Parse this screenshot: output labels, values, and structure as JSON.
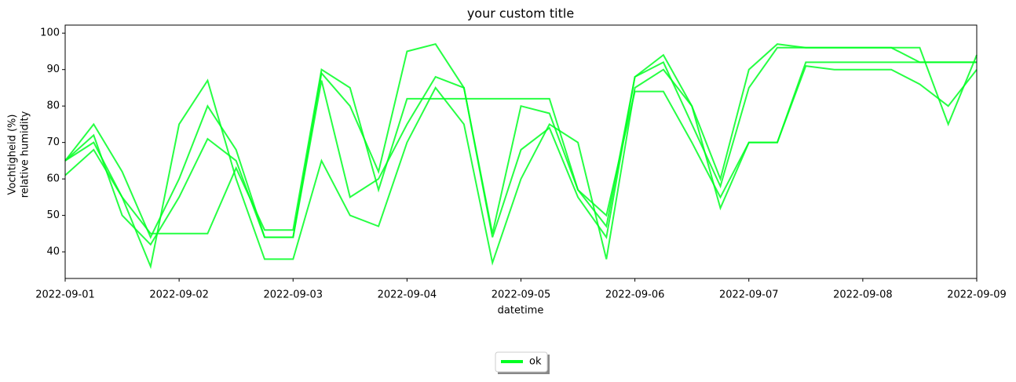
{
  "chart_data": {
    "type": "line",
    "title": "your custom title",
    "x_label": "datetime",
    "y_label": [
      "Vochtigheid (%)",
      "relative humidity"
    ],
    "x": [
      "2022-09-01T00:00",
      "2022-09-01T06:00",
      "2022-09-01T12:00",
      "2022-09-01T18:00",
      "2022-09-02T00:00",
      "2022-09-02T06:00",
      "2022-09-02T12:00",
      "2022-09-02T18:00",
      "2022-09-03T00:00",
      "2022-09-03T06:00",
      "2022-09-03T12:00",
      "2022-09-03T18:00",
      "2022-09-04T00:00",
      "2022-09-04T06:00",
      "2022-09-04T12:00",
      "2022-09-04T18:00",
      "2022-09-05T00:00",
      "2022-09-05T06:00",
      "2022-09-05T12:00",
      "2022-09-05T18:00",
      "2022-09-06T00:00",
      "2022-09-06T06:00",
      "2022-09-06T12:00",
      "2022-09-06T18:00",
      "2022-09-07T00:00",
      "2022-09-07T06:00",
      "2022-09-07T12:00",
      "2022-09-07T18:00",
      "2022-09-08T00:00",
      "2022-09-08T06:00",
      "2022-09-08T12:00",
      "2022-09-08T18:00",
      "2022-09-09T00:00"
    ],
    "series": [
      {
        "name": "ok",
        "color": "#00ff22",
        "values": [
          65,
          75,
          62,
          44,
          60,
          80,
          68,
          44,
          44,
          89,
          80,
          62,
          95,
          97,
          85,
          45,
          80,
          78,
          57,
          47,
          88,
          94,
          80,
          60,
          90,
          97,
          96,
          96,
          96,
          96,
          92,
          92,
          92
        ]
      },
      {
        "color": "#00ff22",
        "values": [
          65,
          70,
          55,
          36,
          75,
          87,
          60,
          38,
          38,
          65,
          50,
          47,
          70,
          85,
          75,
          37,
          60,
          75,
          70,
          38,
          85,
          90,
          80,
          52,
          70,
          70,
          91,
          90,
          90,
          90,
          86,
          80,
          90
        ]
      },
      {
        "color": "#00ff22",
        "values": [
          61,
          68,
          55,
          45,
          45,
          45,
          63,
          46,
          46,
          90,
          85,
          57,
          82,
          82,
          82,
          82,
          82,
          82,
          57,
          50,
          84,
          84,
          70,
          55,
          70,
          70,
          92,
          92,
          92,
          92,
          92,
          92,
          92
        ]
      },
      {
        "color": "#00ff22",
        "values": [
          65,
          72,
          50,
          42,
          55,
          71,
          65,
          44,
          44,
          87,
          55,
          60,
          75,
          88,
          85,
          44,
          68,
          74,
          55,
          44,
          88,
          92,
          75,
          58,
          85,
          96,
          96,
          96,
          96,
          96,
          96,
          75,
          94
        ]
      }
    ],
    "xlim": [
      "2022-09-01T00:00",
      "2022-09-09T00:00"
    ],
    "xticks": [
      {
        "value": "2022-09-01T00:00",
        "label": "2022-09-01"
      },
      {
        "value": "2022-09-02T00:00",
        "label": "2022-09-02"
      },
      {
        "value": "2022-09-03T00:00",
        "label": "2022-09-03"
      },
      {
        "value": "2022-09-04T00:00",
        "label": "2022-09-04"
      },
      {
        "value": "2022-09-05T00:00",
        "label": "2022-09-05"
      },
      {
        "value": "2022-09-06T00:00",
        "label": "2022-09-06"
      },
      {
        "value": "2022-09-07T00:00",
        "label": "2022-09-07"
      },
      {
        "value": "2022-09-08T00:00",
        "label": "2022-09-08"
      },
      {
        "value": "2022-09-09T00:00",
        "label": "2022-09-09"
      }
    ],
    "ylim": [
      32.7,
      102.2
    ],
    "yticks": [
      40,
      50,
      60,
      70,
      80,
      90,
      100
    ],
    "grid": false,
    "legend": "bottom"
  }
}
